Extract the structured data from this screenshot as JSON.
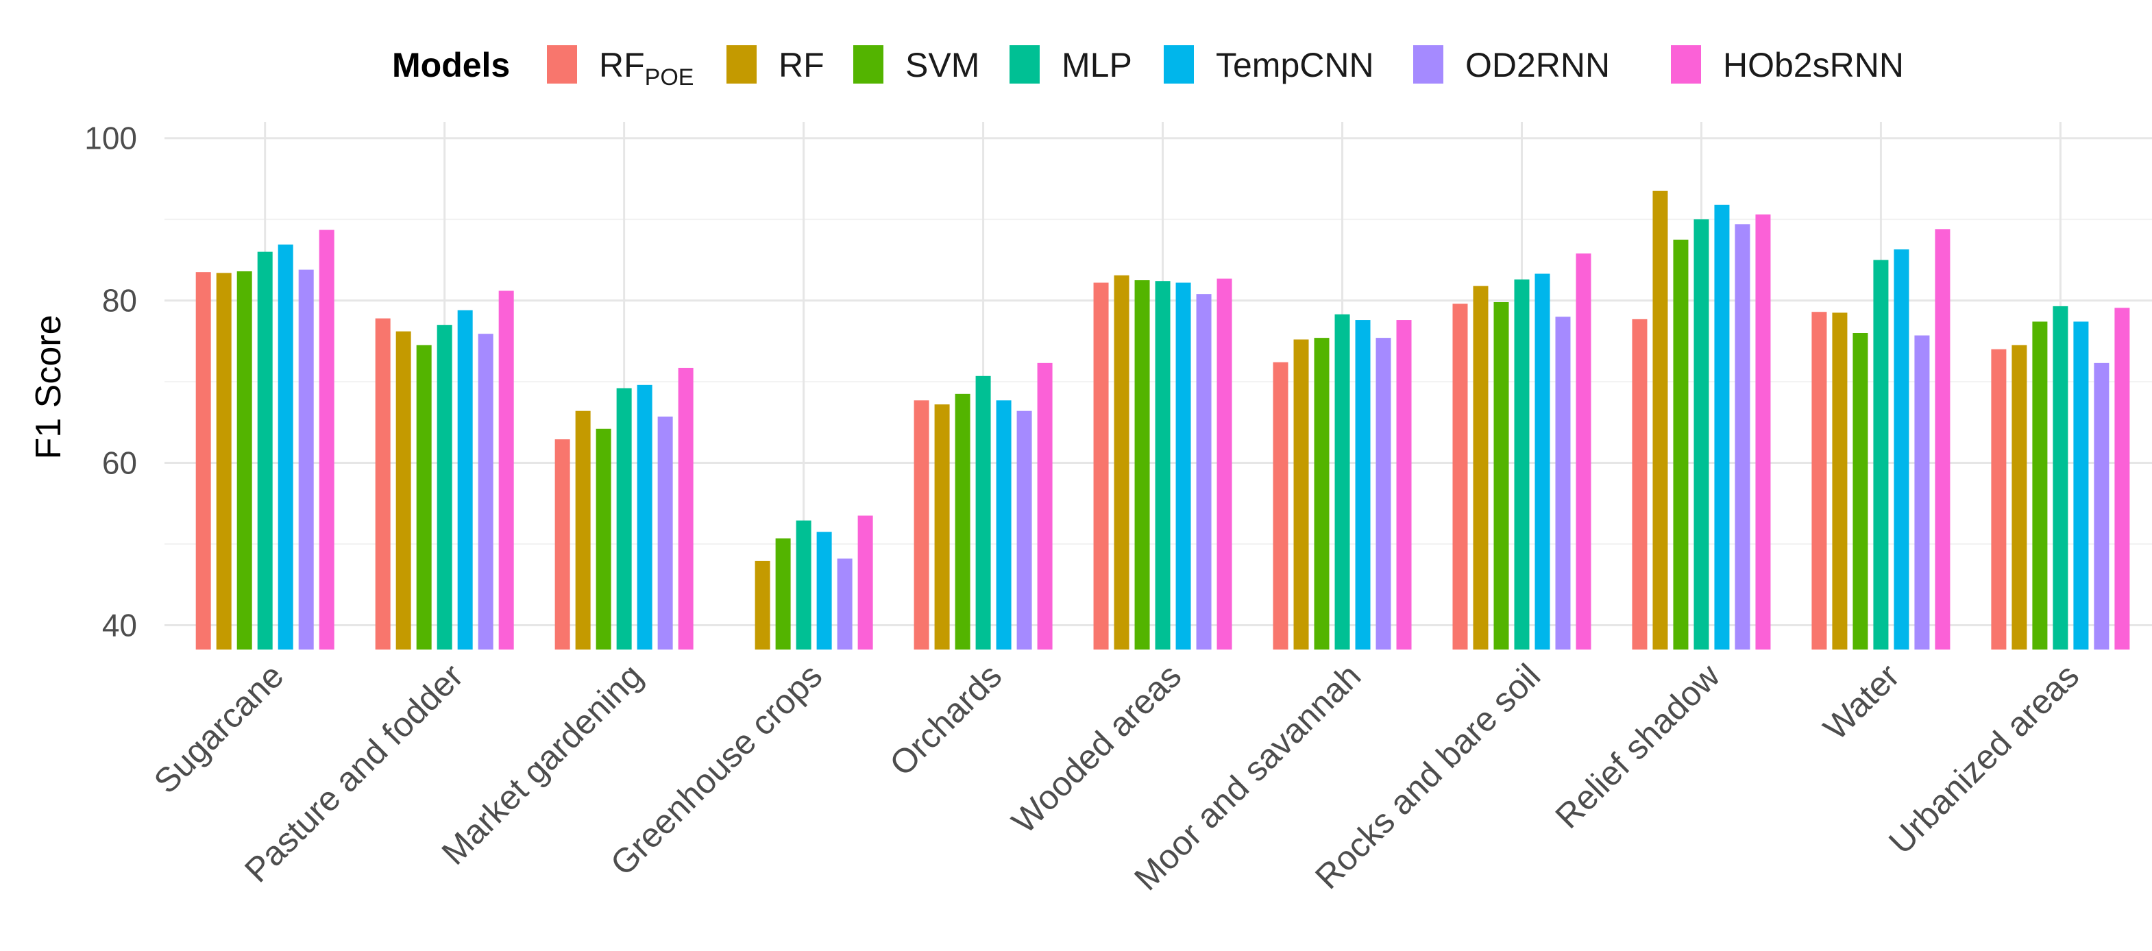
{
  "chart_data": {
    "type": "bar",
    "title": "",
    "xlabel": "",
    "ylabel": "F1 Score",
    "ylim": [
      37,
      102
    ],
    "yticks": [
      "40",
      "60",
      "80",
      "100"
    ],
    "legend_title": "Models",
    "legend_position": "top",
    "grid": true,
    "categories": [
      "Sugarcane",
      "Pasture and fodder",
      "Market gardening",
      "Greenhouse crops",
      "Orchards",
      "Wooded areas",
      "Moor and savannah",
      "Rocks and bare soil",
      "Relief shadow",
      "Water",
      "Urbanized areas"
    ],
    "series": [
      {
        "name": "RF",
        "subscript": "POE",
        "color": "#F8766D",
        "values": [
          83.5,
          77.8,
          62.9,
          null,
          67.7,
          82.2,
          72.4,
          79.6,
          77.7,
          78.6,
          74.0
        ]
      },
      {
        "name": "RF",
        "subscript": "",
        "color": "#C49A00",
        "values": [
          83.4,
          76.2,
          66.4,
          47.9,
          67.2,
          83.1,
          75.2,
          81.8,
          93.5,
          78.5,
          74.5
        ]
      },
      {
        "name": "SVM",
        "subscript": "",
        "color": "#53B400",
        "values": [
          83.6,
          74.5,
          64.2,
          50.7,
          68.5,
          82.5,
          75.4,
          79.8,
          87.5,
          76.0,
          77.4
        ]
      },
      {
        "name": "MLP",
        "subscript": "",
        "color": "#00C094",
        "values": [
          86.0,
          77.0,
          69.2,
          52.9,
          70.7,
          82.4,
          78.3,
          82.6,
          90.0,
          85.0,
          79.3
        ]
      },
      {
        "name": "TempCNN",
        "subscript": "",
        "color": "#00B6EB",
        "values": [
          86.9,
          78.8,
          69.6,
          51.5,
          67.7,
          82.2,
          77.6,
          83.3,
          91.8,
          86.3,
          77.4
        ]
      },
      {
        "name": "OD2RNN",
        "subscript": "",
        "color": "#A58AFF",
        "values": [
          83.8,
          75.9,
          65.7,
          48.2,
          66.4,
          80.8,
          75.4,
          78.0,
          89.4,
          75.7,
          72.3
        ]
      },
      {
        "name": "HOb2sRNN",
        "subscript": "",
        "color": "#FB61D7",
        "values": [
          88.7,
          81.2,
          71.7,
          53.5,
          72.3,
          82.7,
          77.6,
          85.8,
          90.6,
          88.8,
          79.1
        ]
      }
    ]
  }
}
